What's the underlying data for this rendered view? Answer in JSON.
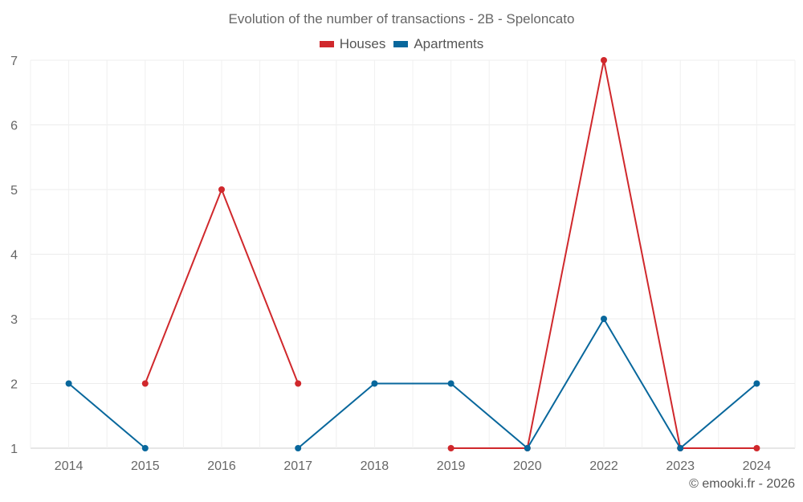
{
  "title": "Evolution of the number of transactions - 2B - Speloncato",
  "credit": "© emooki.fr - 2026",
  "chart_data": {
    "type": "line",
    "title": "Evolution of the number of transactions - 2B - Speloncato",
    "categories": [
      "2014",
      "2015",
      "2016",
      "2017",
      "2018",
      "2019",
      "2020",
      "2022",
      "2023",
      "2024"
    ],
    "ylim": [
      1,
      7
    ],
    "yticks": [
      1,
      2,
      3,
      4,
      5,
      6,
      7
    ],
    "grid": true,
    "legend_position": "top-center",
    "series": [
      {
        "name": "Houses",
        "color": "#d0282c",
        "values": [
          null,
          2,
          5,
          2,
          null,
          1,
          1,
          7,
          1,
          1
        ]
      },
      {
        "name": "Apartments",
        "color": "#08679c",
        "values": [
          2,
          1,
          null,
          1,
          2,
          2,
          1,
          3,
          1,
          2
        ]
      }
    ]
  }
}
